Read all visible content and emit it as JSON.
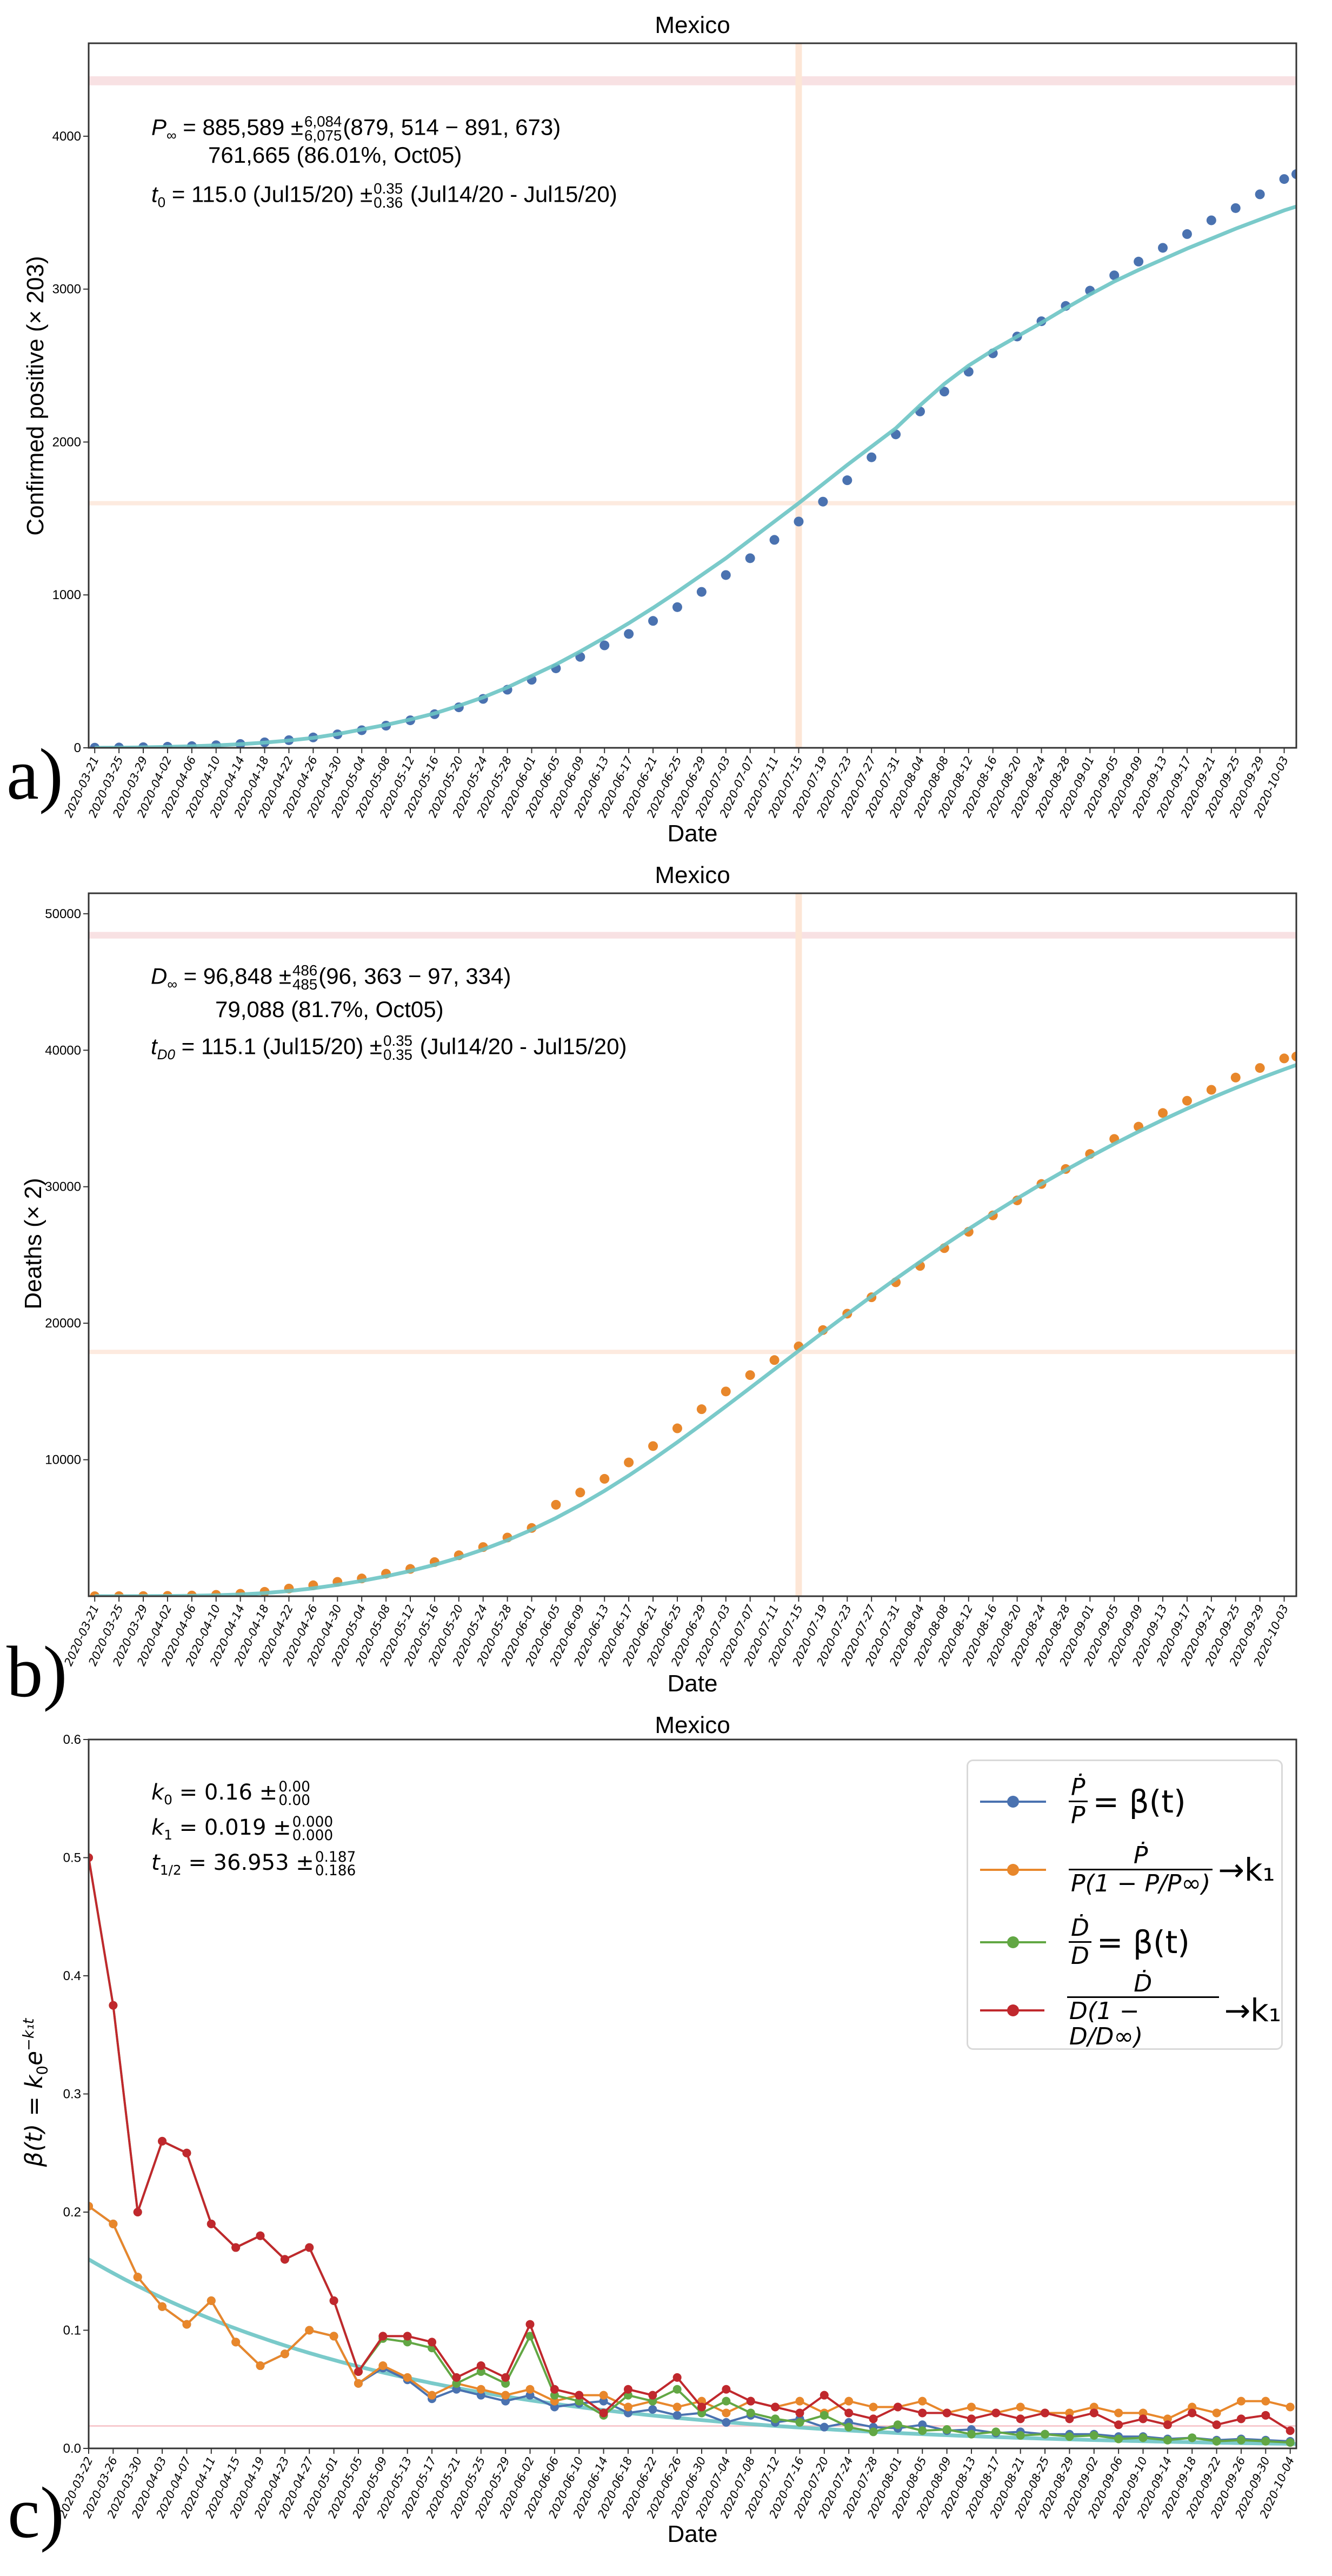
{
  "panels": {
    "a": "a)",
    "b": "b)",
    "c": "c)"
  },
  "colors": {
    "blue": "#4a72b0",
    "orange": "#e8872b",
    "green": "#62a744",
    "red": "#c0282d",
    "fit": "#6cc4c4",
    "vband": "#fde6d6",
    "hband_orange": "#fdeadf",
    "hband_red": "#f8e1e3",
    "k1_line": "#f7c9ce"
  },
  "chart_data": [
    {
      "id": "a",
      "type": "scatter",
      "title": "Mexico",
      "xlabel": "Date",
      "ylabel": "Confirmed positive (× 203)",
      "xlim": [
        "2020-03-20",
        "2020-10-05"
      ],
      "ylim": [
        0,
        4608
      ],
      "yticks": [
        0,
        1000,
        2000,
        3000,
        4000
      ],
      "ytick_labels": [
        "0",
        "1000",
        "2000",
        "3000",
        "4000"
      ],
      "xtick_labels": [
        "2020-03-21",
        "2020-03-25",
        "2020-03-29",
        "2020-04-02",
        "2020-04-06",
        "2020-04-10",
        "2020-04-14",
        "2020-04-18",
        "2020-04-22",
        "2020-04-26",
        "2020-04-30",
        "2020-05-04",
        "2020-05-08",
        "2020-05-12",
        "2020-05-16",
        "2020-05-20",
        "2020-05-24",
        "2020-05-28",
        "2020-06-01",
        "2020-06-05",
        "2020-06-09",
        "2020-06-13",
        "2020-06-17",
        "2020-06-21",
        "2020-06-25",
        "2020-06-29",
        "2020-07-03",
        "2020-07-07",
        "2020-07-11",
        "2020-07-15",
        "2020-07-19",
        "2020-07-23",
        "2020-07-27",
        "2020-07-31",
        "2020-08-04",
        "2020-08-08",
        "2020-08-12",
        "2020-08-16",
        "2020-08-20",
        "2020-08-24",
        "2020-08-28",
        "2020-09-01",
        "2020-09-05",
        "2020-09-09",
        "2020-09-13",
        "2020-09-17",
        "2020-09-21",
        "2020-09-25",
        "2020-09-29",
        "2020-10-03"
      ],
      "x": [
        "2020-03-21",
        "2020-03-25",
        "2020-03-29",
        "2020-04-02",
        "2020-04-06",
        "2020-04-10",
        "2020-04-14",
        "2020-04-18",
        "2020-04-22",
        "2020-04-26",
        "2020-04-30",
        "2020-05-04",
        "2020-05-08",
        "2020-05-12",
        "2020-05-16",
        "2020-05-20",
        "2020-05-24",
        "2020-05-28",
        "2020-06-01",
        "2020-06-05",
        "2020-06-09",
        "2020-06-13",
        "2020-06-17",
        "2020-06-21",
        "2020-06-25",
        "2020-06-29",
        "2020-07-03",
        "2020-07-07",
        "2020-07-11",
        "2020-07-15",
        "2020-07-19",
        "2020-07-23",
        "2020-07-27",
        "2020-07-31",
        "2020-08-04",
        "2020-08-08",
        "2020-08-12",
        "2020-08-16",
        "2020-08-20",
        "2020-08-24",
        "2020-08-28",
        "2020-09-01",
        "2020-09-05",
        "2020-09-09",
        "2020-09-13",
        "2020-09-17",
        "2020-09-21",
        "2020-09-25",
        "2020-09-29",
        "2020-10-03",
        "2020-10-05"
      ],
      "series": [
        {
          "color": "blue",
          "markers": true,
          "values": [
            1,
            2,
            4,
            7,
            11,
            17,
            25,
            36,
            50,
            68,
            88,
            115,
            145,
            180,
            220,
            265,
            320,
            380,
            445,
            520,
            595,
            670,
            745,
            830,
            920,
            1020,
            1130,
            1240,
            1360,
            1480,
            1610,
            1750,
            1900,
            2050,
            2200,
            2330,
            2460,
            2580,
            2690,
            2790,
            2890,
            2990,
            3090,
            3180,
            3270,
            3360,
            3450,
            3530,
            3620,
            3720,
            3752
          ]
        },
        {
          "color": "fit",
          "markers": false,
          "values": [
            0,
            1,
            3,
            6,
            10,
            16,
            24,
            34,
            48,
            65,
            90,
            120,
            150,
            185,
            225,
            275,
            330,
            395,
            470,
            545,
            630,
            720,
            815,
            915,
            1020,
            1130,
            1240,
            1360,
            1480,
            1600,
            1725,
            1850,
            1970,
            2090,
            2240,
            2380,
            2500,
            2600,
            2690,
            2780,
            2875,
            2965,
            3050,
            3125,
            3195,
            3265,
            3330,
            3395,
            3455,
            3515,
            3540
          ]
        }
      ],
      "vline_date": "2020-07-15",
      "hline_value": 1600,
      "hband_range": [
        4333,
        4392
      ],
      "annotation": {
        "l1_sym": "P",
        "l1_sub": "∞",
        "l1_eq": " = 885,589 ±",
        "l1_sup": "6,084",
        "l1_subv": "6,075",
        "l1_range": "(879, 514 − 891, 673)",
        "l2": "761,665 (86.01%, Oct05)",
        "l3_sym": "t",
        "l3_sub": "0",
        "l3_eq": " = 115.0 (Jul15/20) ±",
        "l3_sup": "0.35",
        "l3_subv": "0.36",
        "l3_range": " (Jul14/20 - Jul15/20)"
      }
    },
    {
      "id": "b",
      "type": "scatter",
      "title": "Mexico",
      "xlabel": "Date",
      "ylabel": "Deaths (× 2)",
      "xlim": [
        "2020-03-20",
        "2020-10-05"
      ],
      "ylim": [
        0,
        51500
      ],
      "yticks": [
        10000,
        20000,
        30000,
        40000,
        50000
      ],
      "ytick_labels": [
        "10000",
        "20000",
        "30000",
        "40000",
        "50000"
      ],
      "xtick_labels": [
        "2020-03-21",
        "2020-03-25",
        "2020-03-29",
        "2020-04-02",
        "2020-04-06",
        "2020-04-10",
        "2020-04-14",
        "2020-04-18",
        "2020-04-22",
        "2020-04-26",
        "2020-04-30",
        "2020-05-04",
        "2020-05-08",
        "2020-05-12",
        "2020-05-16",
        "2020-05-20",
        "2020-05-24",
        "2020-05-28",
        "2020-06-01",
        "2020-06-05",
        "2020-06-09",
        "2020-06-13",
        "2020-06-17",
        "2020-06-21",
        "2020-06-25",
        "2020-06-29",
        "2020-07-03",
        "2020-07-07",
        "2020-07-11",
        "2020-07-15",
        "2020-07-19",
        "2020-07-23",
        "2020-07-27",
        "2020-07-31",
        "2020-08-04",
        "2020-08-08",
        "2020-08-12",
        "2020-08-16",
        "2020-08-20",
        "2020-08-24",
        "2020-08-28",
        "2020-09-01",
        "2020-09-05",
        "2020-09-09",
        "2020-09-13",
        "2020-09-17",
        "2020-09-21",
        "2020-09-25",
        "2020-09-29",
        "2020-10-03"
      ],
      "x": [
        "2020-03-21",
        "2020-03-25",
        "2020-03-29",
        "2020-04-02",
        "2020-04-06",
        "2020-04-10",
        "2020-04-14",
        "2020-04-18",
        "2020-04-22",
        "2020-04-26",
        "2020-04-30",
        "2020-05-04",
        "2020-05-08",
        "2020-05-12",
        "2020-05-16",
        "2020-05-20",
        "2020-05-24",
        "2020-05-28",
        "2020-06-01",
        "2020-06-05",
        "2020-06-09",
        "2020-06-13",
        "2020-06-17",
        "2020-06-21",
        "2020-06-25",
        "2020-06-29",
        "2020-07-03",
        "2020-07-07",
        "2020-07-11",
        "2020-07-15",
        "2020-07-19",
        "2020-07-23",
        "2020-07-27",
        "2020-07-31",
        "2020-08-04",
        "2020-08-08",
        "2020-08-12",
        "2020-08-16",
        "2020-08-20",
        "2020-08-24",
        "2020-08-28",
        "2020-09-01",
        "2020-09-05",
        "2020-09-09",
        "2020-09-13",
        "2020-09-17",
        "2020-09-21",
        "2020-09-25",
        "2020-09-29",
        "2020-10-03",
        "2020-10-05"
      ],
      "series": [
        {
          "color": "orange",
          "markers": true,
          "values": [
            1,
            3,
            10,
            25,
            50,
            100,
            180,
            320,
            560,
            800,
            1050,
            1300,
            1650,
            2000,
            2500,
            3000,
            3600,
            4300,
            5000,
            6700,
            7600,
            8600,
            9800,
            11000,
            12300,
            13700,
            15000,
            16200,
            17300,
            18300,
            19500,
            20700,
            21900,
            23000,
            24200,
            25500,
            26700,
            27900,
            29000,
            30200,
            31300,
            32400,
            33500,
            34400,
            35400,
            36300,
            37100,
            38000,
            38700,
            39400,
            39544
          ]
        },
        {
          "color": "fit",
          "markers": false,
          "values": [
            0,
            2,
            6,
            15,
            35,
            70,
            130,
            230,
            380,
            580,
            830,
            1120,
            1460,
            1850,
            2300,
            2820,
            3420,
            4100,
            4870,
            5730,
            6680,
            7720,
            8840,
            10030,
            11280,
            12580,
            13910,
            15260,
            16620,
            17980,
            19330,
            20660,
            21970,
            23250,
            24500,
            25720,
            26900,
            28040,
            29140,
            30200,
            31220,
            32200,
            33140,
            34040,
            34900,
            35720,
            36500,
            37240,
            37940,
            38600,
            38920
          ]
        }
      ],
      "vline_date": "2020-07-15",
      "hline_value": 17900,
      "hband_range": [
        48181,
        48667
      ],
      "annotation": {
        "l1_sym": "D",
        "l1_sub": "∞",
        "l1_eq": " = 96,848 ±",
        "l1_sup": "486",
        "l1_subv": "485",
        "l1_range": "(96, 363 − 97, 334)",
        "l2": "79,088 (81.7%, Oct05)",
        "l3_sym": "t",
        "l3_sub": "D0",
        "l3_eq": " = 115.1 (Jul15/20) ±",
        "l3_sup": "0.35",
        "l3_subv": "0.35",
        "l3_range": " (Jul14/20 - Jul15/20)"
      }
    },
    {
      "id": "c",
      "type": "line",
      "title": "Mexico",
      "xlabel": "Date",
      "ylabel_parts": {
        "lhs": "β(t) = k",
        "sub0": "0",
        "e": "e",
        "sup": "−k₁t"
      },
      "xlim": [
        "2020-03-22",
        "2020-10-05"
      ],
      "ylim": [
        0,
        0.6
      ],
      "yticks": [
        0,
        0.1,
        0.2,
        0.3,
        0.4,
        0.5,
        0.6
      ],
      "ytick_labels": [
        "0.0",
        "0.1",
        "0.2",
        "0.3",
        "0.4",
        "0.5",
        "0.6"
      ],
      "xtick_labels": [
        "2020-03-22",
        "2020-03-26",
        "2020-03-30",
        "2020-04-03",
        "2020-04-07",
        "2020-04-11",
        "2020-04-15",
        "2020-04-19",
        "2020-04-23",
        "2020-04-27",
        "2020-05-01",
        "2020-05-05",
        "2020-05-09",
        "2020-05-13",
        "2020-05-17",
        "2020-05-21",
        "2020-05-25",
        "2020-05-29",
        "2020-06-02",
        "2020-06-06",
        "2020-06-10",
        "2020-06-14",
        "2020-06-18",
        "2020-06-22",
        "2020-06-26",
        "2020-06-30",
        "2020-07-04",
        "2020-07-08",
        "2020-07-12",
        "2020-07-16",
        "2020-07-20",
        "2020-07-24",
        "2020-07-28",
        "2020-08-01",
        "2020-08-05",
        "2020-08-09",
        "2020-08-13",
        "2020-08-17",
        "2020-08-21",
        "2020-08-25",
        "2020-08-29",
        "2020-09-02",
        "2020-09-06",
        "2020-09-10",
        "2020-09-14",
        "2020-09-18",
        "2020-09-22",
        "2020-09-26",
        "2020-09-30",
        "2020-10-04"
      ],
      "x": [
        "2020-03-22",
        "2020-03-26",
        "2020-03-30",
        "2020-04-03",
        "2020-04-07",
        "2020-04-11",
        "2020-04-15",
        "2020-04-19",
        "2020-04-23",
        "2020-04-27",
        "2020-05-01",
        "2020-05-05",
        "2020-05-09",
        "2020-05-13",
        "2020-05-17",
        "2020-05-21",
        "2020-05-25",
        "2020-05-29",
        "2020-06-02",
        "2020-06-06",
        "2020-06-10",
        "2020-06-14",
        "2020-06-18",
        "2020-06-22",
        "2020-06-26",
        "2020-06-30",
        "2020-07-04",
        "2020-07-08",
        "2020-07-12",
        "2020-07-16",
        "2020-07-20",
        "2020-07-24",
        "2020-07-28",
        "2020-08-01",
        "2020-08-05",
        "2020-08-09",
        "2020-08-13",
        "2020-08-17",
        "2020-08-21",
        "2020-08-25",
        "2020-08-29",
        "2020-09-02",
        "2020-09-06",
        "2020-09-10",
        "2020-09-14",
        "2020-09-18",
        "2020-09-22",
        "2020-09-26",
        "2020-09-30",
        "2020-10-04"
      ],
      "series": [
        {
          "color": "blue",
          "markers": true,
          "values": [
            0.205,
            0.19,
            0.145,
            0.12,
            0.105,
            0.125,
            0.09,
            0.07,
            0.08,
            0.1,
            0.095,
            0.055,
            0.068,
            0.058,
            0.042,
            0.05,
            0.045,
            0.04,
            0.045,
            0.035,
            0.038,
            0.04,
            0.03,
            0.033,
            0.028,
            0.03,
            0.022,
            0.028,
            0.022,
            0.025,
            0.018,
            0.022,
            0.018,
            0.017,
            0.02,
            0.015,
            0.016,
            0.013,
            0.014,
            0.012,
            0.012,
            0.012,
            0.01,
            0.01,
            0.008,
            0.009,
            0.007,
            0.008,
            0.007,
            0.006
          ]
        },
        {
          "color": "orange",
          "markers": true,
          "values": [
            0.205,
            0.19,
            0.145,
            0.12,
            0.105,
            0.125,
            0.09,
            0.07,
            0.08,
            0.1,
            0.095,
            0.055,
            0.07,
            0.06,
            0.045,
            0.055,
            0.05,
            0.045,
            0.05,
            0.04,
            0.045,
            0.045,
            0.035,
            0.04,
            0.035,
            0.04,
            0.03,
            0.04,
            0.035,
            0.04,
            0.03,
            0.04,
            0.035,
            0.035,
            0.04,
            0.03,
            0.035,
            0.03,
            0.035,
            0.03,
            0.03,
            0.035,
            0.03,
            0.03,
            0.025,
            0.035,
            0.03,
            0.04,
            0.04,
            0.035
          ]
        },
        {
          "color": "green",
          "markers": true,
          "values": [
            0.5,
            0.375,
            0.2,
            0.26,
            0.25,
            0.19,
            0.17,
            0.18,
            0.16,
            0.17,
            0.125,
            0.065,
            0.093,
            0.09,
            0.085,
            0.055,
            0.065,
            0.055,
            0.095,
            0.045,
            0.04,
            0.028,
            0.045,
            0.04,
            0.05,
            0.03,
            0.04,
            0.03,
            0.025,
            0.022,
            0.028,
            0.018,
            0.014,
            0.02,
            0.015,
            0.016,
            0.012,
            0.014,
            0.011,
            0.012,
            0.01,
            0.011,
            0.008,
            0.009,
            0.007,
            0.009,
            0.006,
            0.007,
            0.006,
            0.005
          ]
        },
        {
          "color": "red",
          "markers": true,
          "values": [
            0.5,
            0.375,
            0.2,
            0.26,
            0.25,
            0.19,
            0.17,
            0.18,
            0.16,
            0.17,
            0.125,
            0.065,
            0.095,
            0.095,
            0.09,
            0.06,
            0.07,
            0.06,
            0.105,
            0.05,
            0.045,
            0.03,
            0.05,
            0.045,
            0.06,
            0.035,
            0.05,
            0.04,
            0.035,
            0.03,
            0.045,
            0.03,
            0.025,
            0.035,
            0.03,
            0.03,
            0.025,
            0.03,
            0.025,
            0.03,
            0.025,
            0.03,
            0.02,
            0.025,
            0.02,
            0.03,
            0.02,
            0.025,
            0.028,
            0.015
          ]
        }
      ],
      "fit": {
        "k0": 0.16,
        "k1": 0.019
      },
      "hline_value": 0.019,
      "annotation": {
        "k0_sym": "k",
        "k0_sub": "0",
        "k0_eq": " = 0.16 ±",
        "k0_sup": "0.00",
        "k0_subv": "0.00",
        "k1_sym": "k",
        "k1_sub": "1",
        "k1_eq": " = 0.019 ±",
        "k1_sup": "0.000",
        "k1_subv": "0.000",
        "th_sym": "t",
        "th_sub": "1/2",
        "th_eq": " = 36.953 ±",
        "th_sup": "0.187",
        "th_subv": "0.186"
      },
      "legend": [
        {
          "color": "blue",
          "num": "Ṗ",
          "den": "P",
          "rhs": "= β(t)"
        },
        {
          "color": "orange",
          "num": "Ṗ",
          "den": "P(1 − P/P∞)",
          "rhs": "→k₁"
        },
        {
          "color": "green",
          "num": "Ḋ",
          "den": "D",
          "rhs": "= β(t)"
        },
        {
          "color": "red",
          "num": "Ḋ",
          "den": "D(1 − D/D∞)",
          "rhs": "→k₁"
        }
      ]
    }
  ]
}
